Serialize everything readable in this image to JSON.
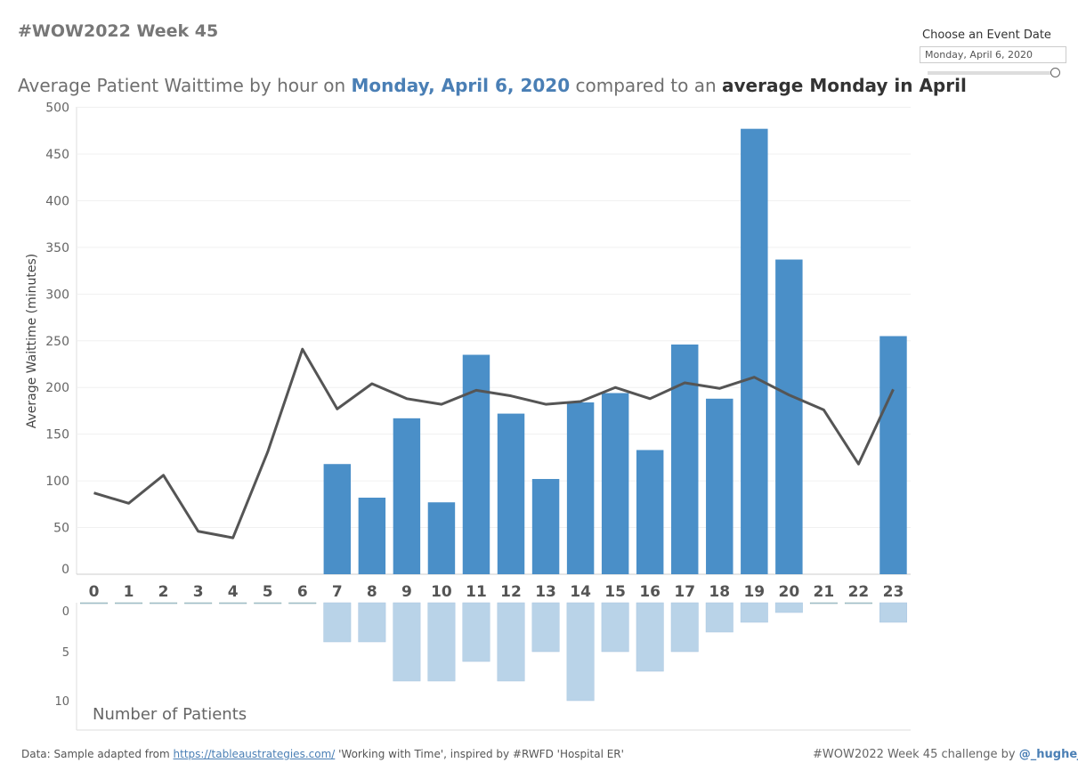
{
  "header": {
    "title": "#WOW2022 Week 45"
  },
  "subtitle": {
    "prefix": "Average Patient Waittime by hour on ",
    "date": "Monday, April 6, 2020",
    "middle": " compared to an ",
    "avg": "average Monday in April"
  },
  "filter": {
    "label": "Choose an Event Date",
    "value": "Monday, April 6, 2020",
    "slider_position": 1.0
  },
  "footer": {
    "left_prefix": "Data: Sample adapted from ",
    "link": "https://tableaustrategies.com/",
    "left_suffix": " 'Working with Time', inspired by #RWFD 'Hospital ER'",
    "right_prefix": "#WOW2022 Week 45 challenge by ",
    "right_handle": "@_hughej"
  },
  "colors": {
    "bar": "#4a8fc8",
    "line": "#555555",
    "patients": "#b9d3e8"
  },
  "chart_data": [
    {
      "type": "bar+line",
      "ylabel": "Average Waittime (minutes)",
      "ylim": [
        0,
        500
      ],
      "yticks": [
        0,
        50,
        100,
        150,
        200,
        250,
        300,
        350,
        400,
        450,
        500
      ],
      "categories": [
        "0",
        "1",
        "2",
        "3",
        "4",
        "5",
        "6",
        "7",
        "8",
        "9",
        "10",
        "11",
        "12",
        "13",
        "14",
        "15",
        "16",
        "17",
        "18",
        "19",
        "20",
        "21",
        "22",
        "23"
      ],
      "series": [
        {
          "type": "bar",
          "values": [
            null,
            null,
            null,
            null,
            null,
            null,
            null,
            118,
            82,
            167,
            77,
            235,
            172,
            102,
            184,
            194,
            133,
            246,
            188,
            477,
            337,
            null,
            null,
            255
          ]
        },
        {
          "type": "line",
          "values": [
            87,
            76,
            106,
            46,
            39,
            131,
            241,
            177,
            204,
            188,
            182,
            197,
            191,
            182,
            185,
            200,
            188,
            205,
            199,
            211,
            192,
            176,
            118,
            198
          ]
        }
      ],
      "grid": true
    },
    {
      "type": "bar",
      "title": "Number of Patients",
      "ylim": [
        0,
        12
      ],
      "yticks": [
        0,
        5,
        10
      ],
      "reversed": true,
      "categories": [
        "0",
        "1",
        "2",
        "3",
        "4",
        "5",
        "6",
        "7",
        "8",
        "9",
        "10",
        "11",
        "12",
        "13",
        "14",
        "15",
        "16",
        "17",
        "18",
        "19",
        "20",
        "21",
        "22",
        "23"
      ],
      "values": [
        0,
        0,
        0,
        0,
        0,
        0,
        0,
        4,
        4,
        8,
        8,
        6,
        8,
        5,
        10,
        5,
        7,
        5,
        3,
        2,
        1,
        0,
        0,
        2
      ]
    }
  ]
}
